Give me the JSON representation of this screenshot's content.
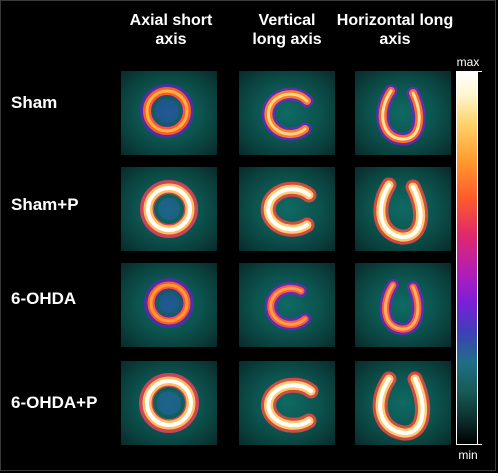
{
  "columns": [
    {
      "line1": "Axial short",
      "line2": "axis"
    },
    {
      "line1": "Vertical",
      "line2": "long axis"
    },
    {
      "line1": "Horizontal long",
      "line2": "axis"
    }
  ],
  "rows": [
    {
      "label": "Sham"
    },
    {
      "label": "Sham+P"
    },
    {
      "label": "6-OHDA"
    },
    {
      "label": "6-OHDA+P"
    }
  ],
  "scale": {
    "max": "max",
    "min": "min"
  }
}
